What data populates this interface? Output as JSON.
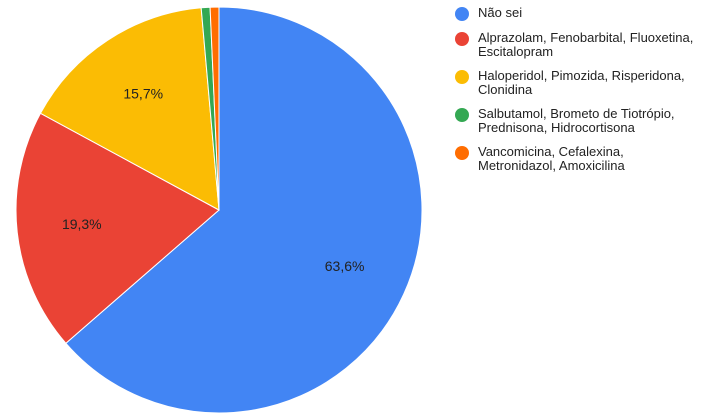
{
  "chart_data": {
    "type": "pie",
    "categories": [
      "Não sei",
      "Alprazolam, Fenobarbital, Fluoxetina, Escitalopram",
      "Haloperidol, Pimozida, Risperidona, Clonidina",
      "Salbutamol, Brometo de Tiotrópio, Prednisona, Hidrocortisona",
      "Vancomicina, Cefalexina, Metronidazol, Amoxicilina"
    ],
    "values": [
      63.6,
      19.3,
      15.7,
      0.7,
      0.7
    ],
    "value_labels": [
      "63,6%",
      "19,3%",
      "15,7%",
      null,
      null
    ],
    "colors": [
      "#4285f4",
      "#ea4335",
      "#fbbc04",
      "#34a853",
      "#ff6d01"
    ],
    "legend": "right"
  }
}
